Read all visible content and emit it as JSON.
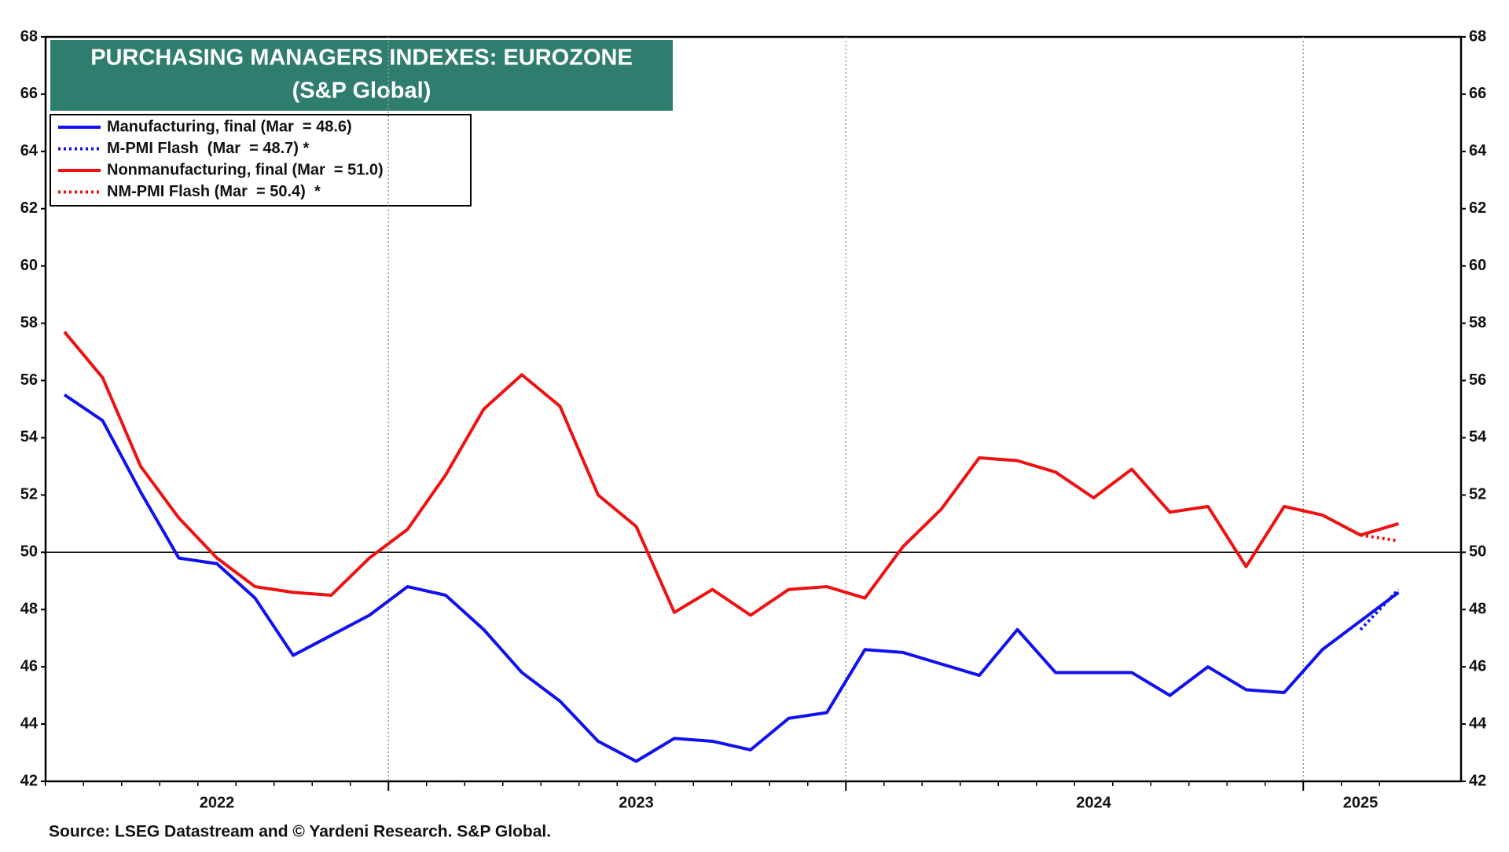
{
  "chart_data": {
    "type": "line",
    "title": "PURCHASING MANAGERS INDEXES: EUROZONE",
    "subtitle": "(S&P Global)",
    "source": "Source: LSEG Datastream and © Yardeni Research. S&P Global.",
    "categories": [
      null,
      null,
      null,
      null,
      "2022",
      null,
      null,
      null,
      null,
      null,
      null,
      null,
      null,
      null,
      null,
      "2023",
      null,
      null,
      null,
      null,
      null,
      null,
      null,
      null,
      null,
      null,
      null,
      "2024",
      null,
      null,
      null,
      null,
      null,
      null,
      "2025",
      null
    ],
    "series": [
      {
        "name": "Manufacturing, final (Mar  = 48.6)",
        "color": "#1010f0",
        "dash": false,
        "values": [
          55.5,
          54.6,
          52.1,
          49.8,
          49.6,
          48.4,
          46.4,
          47.1,
          47.8,
          48.8,
          48.5,
          47.3,
          45.8,
          44.8,
          43.4,
          42.7,
          43.5,
          43.4,
          43.1,
          44.2,
          44.4,
          46.6,
          46.5,
          46.1,
          45.7,
          47.3,
          45.8,
          45.8,
          45.8,
          45.0,
          46.0,
          45.2,
          45.1,
          46.6,
          47.6,
          48.6
        ]
      },
      {
        "name": "M-PMI Flash  (Mar  = 48.7) *",
        "color": "#1010f0",
        "dash": true,
        "values": [
          null,
          null,
          null,
          null,
          null,
          null,
          null,
          null,
          null,
          null,
          null,
          null,
          null,
          null,
          null,
          null,
          null,
          null,
          null,
          null,
          null,
          null,
          null,
          null,
          null,
          null,
          null,
          null,
          null,
          null,
          null,
          null,
          null,
          null,
          47.3,
          48.7
        ]
      },
      {
        "name": "Nonmanufacturing, final (Mar  = 51.0)",
        "color": "#ee1111",
        "dash": false,
        "values": [
          57.7,
          56.1,
          53.0,
          51.2,
          49.8,
          48.8,
          48.6,
          48.5,
          49.8,
          50.8,
          52.7,
          55.0,
          56.2,
          55.1,
          52.0,
          50.9,
          47.9,
          48.7,
          47.8,
          48.7,
          48.8,
          48.4,
          50.2,
          51.5,
          53.3,
          53.2,
          52.8,
          51.9,
          52.9,
          51.4,
          51.6,
          49.5,
          51.6,
          51.3,
          50.6,
          51.0
        ]
      },
      {
        "name": "NM-PMI Flash (Mar  = 50.4)  *",
        "color": "#ee1111",
        "dash": true,
        "values": [
          null,
          null,
          null,
          null,
          null,
          null,
          null,
          null,
          null,
          null,
          null,
          null,
          null,
          null,
          null,
          null,
          null,
          null,
          null,
          null,
          null,
          null,
          null,
          null,
          null,
          null,
          null,
          null,
          null,
          null,
          null,
          null,
          null,
          null,
          50.6,
          50.4
        ]
      }
    ],
    "ylim": [
      42,
      68
    ],
    "yticks": [
      42,
      44,
      46,
      48,
      50,
      52,
      54,
      56,
      58,
      60,
      62,
      64,
      66,
      68
    ],
    "y2lim": [
      42,
      68
    ],
    "y2ticks": [
      42,
      44,
      46,
      48,
      50,
      52,
      54,
      56,
      58,
      60,
      62,
      64,
      66,
      68
    ],
    "reference_line": 50,
    "legend": "upper left"
  }
}
